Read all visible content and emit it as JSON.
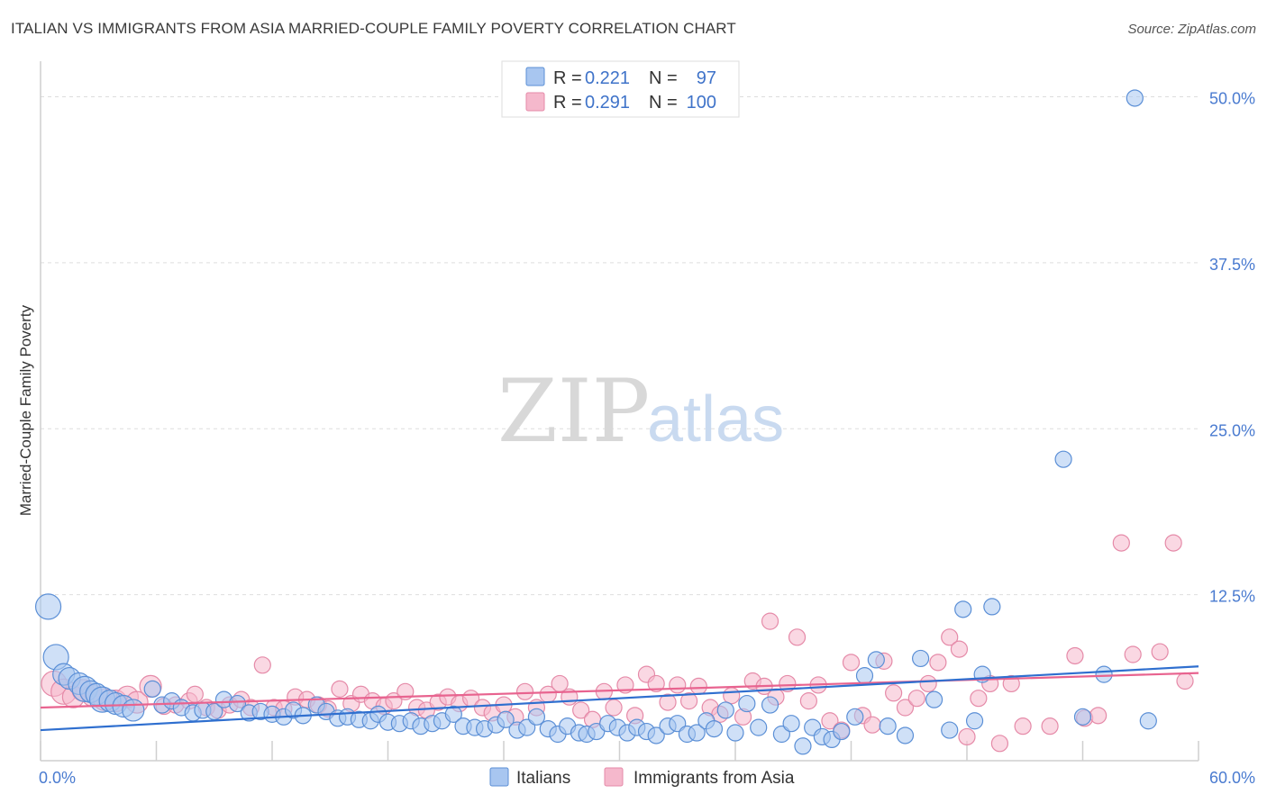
{
  "header": {
    "title": "ITALIAN VS IMMIGRANTS FROM ASIA MARRIED-COUPLE FAMILY POVERTY CORRELATION CHART",
    "source": "Source: ZipAtlas.com"
  },
  "watermark": {
    "zip": "ZIP",
    "atlas": "atlas"
  },
  "colors": {
    "blue_fill": "#a8c6f0",
    "blue_stroke": "#5b8fd6",
    "blue_line": "#2f6fcf",
    "pink_fill": "#f5b8cc",
    "pink_stroke": "#e58aa8",
    "pink_line": "#e8638f",
    "grid": "#dddddd",
    "tick": "#4a7bd0"
  },
  "legend": {
    "r_label": "R =",
    "n_label": "N =",
    "series": [
      {
        "r": "0.221",
        "n": "97"
      },
      {
        "r": "0.291",
        "n": "100"
      }
    ]
  },
  "chart_data": {
    "type": "scatter",
    "title": "ITALIAN VS IMMIGRANTS FROM ASIA MARRIED-COUPLE FAMILY POVERTY CORRELATION CHART",
    "xlabel": "",
    "ylabel": "Married-Couple Family Poverty",
    "xlim": [
      0,
      60
    ],
    "ylim": [
      0,
      52
    ],
    "x_tick_labels": [
      "0.0%",
      "60.0%"
    ],
    "y_ticks": [
      12.5,
      25.0,
      37.5,
      50.0
    ],
    "y_tick_labels": [
      "12.5%",
      "25.0%",
      "37.5%",
      "50.0%"
    ],
    "grid": true,
    "legend_position": "top-center",
    "series": [
      {
        "name": "Italians",
        "trend": [
          [
            0,
            2.3
          ],
          [
            60,
            7.1
          ]
        ],
        "points": [
          [
            0.4,
            11.6,
            3
          ],
          [
            0.8,
            7.8,
            3
          ],
          [
            1.2,
            6.5,
            2
          ],
          [
            1.5,
            6.2,
            2
          ],
          [
            2.0,
            5.8,
            2
          ],
          [
            2.3,
            5.4,
            3
          ],
          [
            2.6,
            5.2,
            2
          ],
          [
            2.9,
            5.0,
            2
          ],
          [
            3.2,
            4.6,
            3
          ],
          [
            3.6,
            4.5,
            2
          ],
          [
            3.9,
            4.3,
            2
          ],
          [
            4.3,
            4.1,
            2
          ],
          [
            4.8,
            3.8,
            2
          ],
          [
            5.8,
            5.4,
            1
          ],
          [
            6.3,
            4.2,
            1
          ],
          [
            6.8,
            4.5,
            1
          ],
          [
            7.3,
            4.0,
            1
          ],
          [
            7.9,
            3.6,
            1
          ],
          [
            8.4,
            3.8,
            1
          ],
          [
            9.0,
            3.7,
            1
          ],
          [
            9.5,
            4.6,
            1
          ],
          [
            10.2,
            4.3,
            1
          ],
          [
            10.8,
            3.6,
            1
          ],
          [
            11.4,
            3.7,
            1
          ],
          [
            12.0,
            3.5,
            1
          ],
          [
            12.6,
            3.3,
            1
          ],
          [
            13.1,
            3.8,
            1
          ],
          [
            13.6,
            3.4,
            1
          ],
          [
            14.3,
            4.2,
            1
          ],
          [
            14.8,
            3.7,
            1
          ],
          [
            15.4,
            3.2,
            1
          ],
          [
            15.9,
            3.3,
            1
          ],
          [
            16.5,
            3.1,
            1
          ],
          [
            17.1,
            3.0,
            1
          ],
          [
            17.5,
            3.5,
            1
          ],
          [
            18.0,
            2.9,
            1
          ],
          [
            18.6,
            2.8,
            1
          ],
          [
            19.2,
            3.0,
            1
          ],
          [
            19.7,
            2.6,
            1
          ],
          [
            20.3,
            2.8,
            1
          ],
          [
            20.8,
            3.0,
            1
          ],
          [
            21.4,
            3.5,
            1
          ],
          [
            21.9,
            2.6,
            1
          ],
          [
            22.5,
            2.5,
            1
          ],
          [
            23.0,
            2.4,
            1
          ],
          [
            23.6,
            2.7,
            1
          ],
          [
            24.1,
            3.1,
            1
          ],
          [
            24.7,
            2.3,
            1
          ],
          [
            25.2,
            2.5,
            1
          ],
          [
            25.7,
            3.3,
            1
          ],
          [
            26.3,
            2.4,
            1
          ],
          [
            26.8,
            2.0,
            1
          ],
          [
            27.3,
            2.6,
            1
          ],
          [
            27.9,
            2.1,
            1
          ],
          [
            28.3,
            2.0,
            1
          ],
          [
            28.8,
            2.2,
            1
          ],
          [
            29.4,
            2.8,
            1
          ],
          [
            29.9,
            2.5,
            1
          ],
          [
            30.4,
            2.1,
            1
          ],
          [
            30.9,
            2.5,
            1
          ],
          [
            31.4,
            2.2,
            1
          ],
          [
            31.9,
            1.9,
            1
          ],
          [
            32.5,
            2.6,
            1
          ],
          [
            33.0,
            2.8,
            1
          ],
          [
            33.5,
            2.0,
            1
          ],
          [
            34.0,
            2.1,
            1
          ],
          [
            34.5,
            3.0,
            1
          ],
          [
            34.9,
            2.4,
            1
          ],
          [
            35.5,
            3.8,
            1
          ],
          [
            36.0,
            2.1,
            1
          ],
          [
            36.6,
            4.3,
            1
          ],
          [
            37.2,
            2.5,
            1
          ],
          [
            37.8,
            4.2,
            1
          ],
          [
            38.4,
            2.0,
            1
          ],
          [
            38.9,
            2.8,
            1
          ],
          [
            39.5,
            1.1,
            1
          ],
          [
            40.0,
            2.5,
            1
          ],
          [
            40.5,
            1.8,
            1
          ],
          [
            41.0,
            1.6,
            1
          ],
          [
            41.5,
            2.2,
            1
          ],
          [
            42.2,
            3.3,
            1
          ],
          [
            42.7,
            6.4,
            1
          ],
          [
            43.3,
            7.6,
            1
          ],
          [
            43.9,
            2.6,
            1
          ],
          [
            44.8,
            1.9,
            1
          ],
          [
            45.6,
            7.7,
            1
          ],
          [
            46.3,
            4.6,
            1
          ],
          [
            47.1,
            2.3,
            1
          ],
          [
            47.8,
            11.4,
            1
          ],
          [
            48.4,
            3.0,
            1
          ],
          [
            48.8,
            6.5,
            1
          ],
          [
            49.3,
            11.6,
            1
          ],
          [
            53.0,
            22.7,
            1
          ],
          [
            54.0,
            3.3,
            1
          ],
          [
            55.1,
            6.5,
            1
          ],
          [
            57.4,
            3.0,
            1
          ],
          [
            56.7,
            49.9,
            1
          ]
        ]
      },
      {
        "name": "Immigrants from Asia",
        "trend": [
          [
            0,
            4.0
          ],
          [
            60,
            6.6
          ]
        ],
        "points": [
          [
            0.7,
            5.8,
            3
          ],
          [
            1.2,
            5.2,
            3
          ],
          [
            1.7,
            4.8,
            2
          ],
          [
            2.2,
            5.3,
            2
          ],
          [
            2.7,
            4.9,
            2
          ],
          [
            3.3,
            4.6,
            2
          ],
          [
            3.9,
            4.5,
            2
          ],
          [
            4.5,
            4.8,
            2
          ],
          [
            5.0,
            4.4,
            2
          ],
          [
            5.7,
            5.6,
            2
          ],
          [
            6.4,
            4.1,
            1
          ],
          [
            7.0,
            4.2,
            1
          ],
          [
            7.7,
            4.5,
            1
          ],
          [
            8.0,
            5.0,
            1
          ],
          [
            8.6,
            4.0,
            1
          ],
          [
            9.2,
            3.8,
            1
          ],
          [
            9.8,
            4.2,
            1
          ],
          [
            10.4,
            4.6,
            1
          ],
          [
            10.9,
            4.0,
            1
          ],
          [
            11.5,
            7.2,
            1
          ],
          [
            12.1,
            4.0,
            1
          ],
          [
            12.6,
            3.9,
            1
          ],
          [
            13.2,
            4.8,
            1
          ],
          [
            13.8,
            4.6,
            1
          ],
          [
            14.4,
            4.2,
            1
          ],
          [
            14.9,
            3.9,
            1
          ],
          [
            15.5,
            5.4,
            1
          ],
          [
            16.1,
            4.3,
            1
          ],
          [
            16.6,
            5.0,
            1
          ],
          [
            17.2,
            4.5,
            1
          ],
          [
            17.8,
            4.1,
            1
          ],
          [
            18.3,
            4.5,
            1
          ],
          [
            18.9,
            5.2,
            1
          ],
          [
            19.5,
            4.0,
            1
          ],
          [
            20.0,
            3.8,
            1
          ],
          [
            20.6,
            4.4,
            1
          ],
          [
            21.1,
            4.8,
            1
          ],
          [
            21.7,
            4.3,
            1
          ],
          [
            22.3,
            4.7,
            1
          ],
          [
            22.9,
            4.0,
            1
          ],
          [
            23.4,
            3.6,
            1
          ],
          [
            24.0,
            4.2,
            1
          ],
          [
            24.6,
            3.3,
            1
          ],
          [
            25.1,
            5.2,
            1
          ],
          [
            25.7,
            4.0,
            1
          ],
          [
            26.3,
            5.0,
            1
          ],
          [
            26.9,
            5.8,
            1
          ],
          [
            27.4,
            4.8,
            1
          ],
          [
            28.0,
            3.8,
            1
          ],
          [
            28.6,
            3.1,
            1
          ],
          [
            29.2,
            5.2,
            1
          ],
          [
            29.7,
            4.0,
            1
          ],
          [
            30.3,
            5.7,
            1
          ],
          [
            30.8,
            3.4,
            1
          ],
          [
            31.4,
            6.5,
            1
          ],
          [
            31.9,
            5.8,
            1
          ],
          [
            32.5,
            4.4,
            1
          ],
          [
            33.0,
            5.7,
            1
          ],
          [
            33.6,
            4.5,
            1
          ],
          [
            34.1,
            5.6,
            1
          ],
          [
            34.7,
            4.0,
            1
          ],
          [
            35.2,
            3.5,
            1
          ],
          [
            35.8,
            4.9,
            1
          ],
          [
            36.4,
            3.3,
            1
          ],
          [
            36.9,
            6.0,
            1
          ],
          [
            37.5,
            5.6,
            1
          ],
          [
            37.8,
            10.5,
            1
          ],
          [
            38.1,
            4.8,
            1
          ],
          [
            38.7,
            5.8,
            1
          ],
          [
            39.2,
            9.3,
            1
          ],
          [
            39.8,
            4.5,
            1
          ],
          [
            40.3,
            5.7,
            1
          ],
          [
            40.9,
            3.0,
            1
          ],
          [
            41.5,
            2.3,
            1
          ],
          [
            42.0,
            7.4,
            1
          ],
          [
            42.6,
            3.4,
            1
          ],
          [
            43.1,
            2.7,
            1
          ],
          [
            43.7,
            7.5,
            1
          ],
          [
            44.2,
            5.1,
            1
          ],
          [
            44.8,
            4.0,
            1
          ],
          [
            45.4,
            4.7,
            1
          ],
          [
            46.0,
            5.8,
            1
          ],
          [
            46.5,
            7.4,
            1
          ],
          [
            47.1,
            9.3,
            1
          ],
          [
            47.6,
            8.4,
            1
          ],
          [
            48.0,
            1.8,
            1
          ],
          [
            48.6,
            4.7,
            1
          ],
          [
            49.2,
            5.8,
            1
          ],
          [
            49.7,
            1.3,
            1
          ],
          [
            50.3,
            5.8,
            1
          ],
          [
            50.9,
            2.6,
            1
          ],
          [
            52.3,
            2.6,
            1
          ],
          [
            53.6,
            7.9,
            1
          ],
          [
            54.1,
            3.2,
            1
          ],
          [
            54.8,
            3.4,
            1
          ],
          [
            56.0,
            16.4,
            1
          ],
          [
            56.6,
            8.0,
            1
          ],
          [
            58.0,
            8.2,
            1
          ],
          [
            58.7,
            16.4,
            1
          ],
          [
            59.3,
            6.0,
            1
          ]
        ]
      }
    ]
  }
}
